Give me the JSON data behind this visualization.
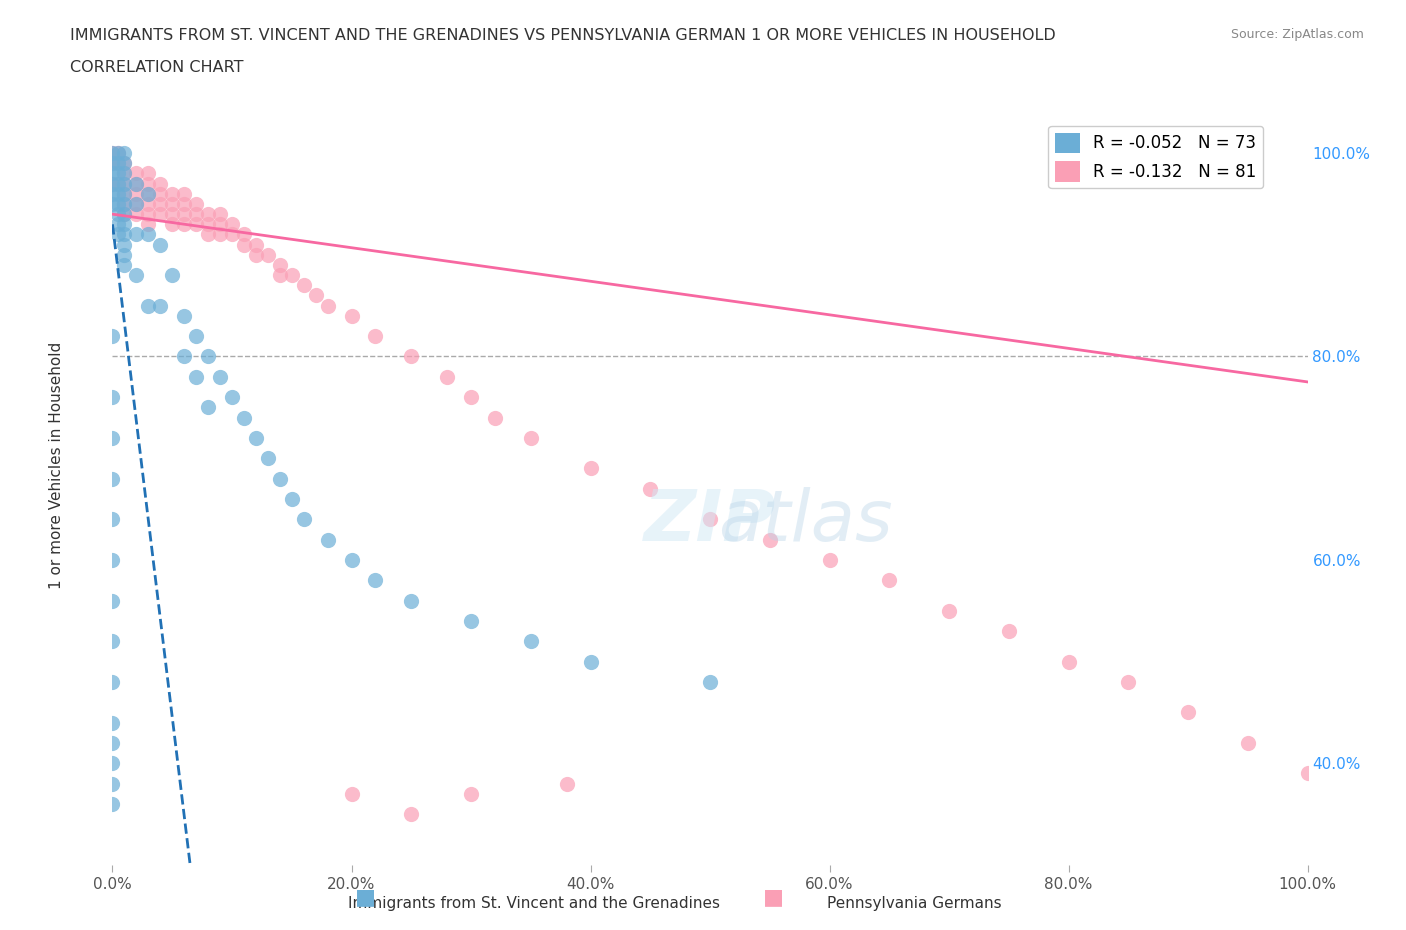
{
  "title_line1": "IMMIGRANTS FROM ST. VINCENT AND THE GRENADINES VS PENNSYLVANIA GERMAN 1 OR MORE VEHICLES IN HOUSEHOLD",
  "title_line2": "CORRELATION CHART",
  "source_text": "Source: ZipAtlas.com",
  "xlabel": "",
  "ylabel": "1 or more Vehicles in Household",
  "xticklabels": [
    "0.0%",
    "20.0%",
    "40.0%",
    "60.0%",
    "80.0%",
    "100.0%"
  ],
  "yticklabels": [
    "40.0%",
    "60.0%",
    "80.0%",
    "100.0%"
  ],
  "xlim": [
    0,
    1
  ],
  "ylim": [
    0.3,
    1.05
  ],
  "legend_label_blue": "Immigrants from St. Vincent and the Grenadines",
  "legend_label_pink": "Pennsylvania Germans",
  "R_blue": -0.052,
  "N_blue": 73,
  "R_pink": -0.132,
  "N_pink": 81,
  "blue_color": "#6baed6",
  "pink_color": "#fa9fb5",
  "blue_line_color": "#2171b5",
  "pink_line_color": "#f768a1",
  "watermark_text": "ZIPatlas",
  "blue_scatter_x": [
    0.0,
    0.0,
    0.0,
    0.0,
    0.0,
    0.0,
    0.005,
    0.005,
    0.005,
    0.005,
    0.005,
    0.005,
    0.005,
    0.005,
    0.005,
    0.01,
    0.01,
    0.01,
    0.01,
    0.01,
    0.01,
    0.01,
    0.01,
    0.01,
    0.01,
    0.01,
    0.01,
    0.02,
    0.02,
    0.02,
    0.02,
    0.03,
    0.03,
    0.03,
    0.04,
    0.04,
    0.05,
    0.06,
    0.06,
    0.07,
    0.07,
    0.08,
    0.08,
    0.09,
    0.1,
    0.11,
    0.12,
    0.13,
    0.14,
    0.15,
    0.16,
    0.18,
    0.2,
    0.22,
    0.25,
    0.3,
    0.35,
    0.4,
    0.5,
    0.0,
    0.0,
    0.0,
    0.0,
    0.0,
    0.0,
    0.0,
    0.0,
    0.0,
    0.0,
    0.0,
    0.0,
    0.0,
    0.0
  ],
  "blue_scatter_y": [
    1.0,
    0.99,
    0.98,
    0.97,
    0.96,
    0.95,
    1.0,
    0.99,
    0.98,
    0.97,
    0.96,
    0.95,
    0.94,
    0.93,
    0.92,
    1.0,
    0.99,
    0.98,
    0.97,
    0.96,
    0.95,
    0.94,
    0.93,
    0.92,
    0.91,
    0.9,
    0.89,
    0.97,
    0.95,
    0.92,
    0.88,
    0.96,
    0.92,
    0.85,
    0.91,
    0.85,
    0.88,
    0.84,
    0.8,
    0.82,
    0.78,
    0.8,
    0.75,
    0.78,
    0.76,
    0.74,
    0.72,
    0.7,
    0.68,
    0.66,
    0.64,
    0.62,
    0.6,
    0.58,
    0.56,
    0.54,
    0.52,
    0.5,
    0.48,
    0.82,
    0.76,
    0.72,
    0.68,
    0.64,
    0.6,
    0.56,
    0.52,
    0.48,
    0.44,
    0.42,
    0.4,
    0.38,
    0.36
  ],
  "pink_scatter_x": [
    0.0,
    0.0,
    0.0,
    0.005,
    0.005,
    0.005,
    0.01,
    0.01,
    0.01,
    0.01,
    0.01,
    0.01,
    0.02,
    0.02,
    0.02,
    0.02,
    0.02,
    0.03,
    0.03,
    0.03,
    0.03,
    0.03,
    0.03,
    0.04,
    0.04,
    0.04,
    0.04,
    0.05,
    0.05,
    0.05,
    0.05,
    0.06,
    0.06,
    0.06,
    0.06,
    0.07,
    0.07,
    0.07,
    0.08,
    0.08,
    0.08,
    0.09,
    0.09,
    0.09,
    0.1,
    0.1,
    0.11,
    0.11,
    0.12,
    0.12,
    0.13,
    0.14,
    0.14,
    0.15,
    0.16,
    0.17,
    0.18,
    0.2,
    0.22,
    0.25,
    0.28,
    0.3,
    0.32,
    0.35,
    0.4,
    0.45,
    0.5,
    0.55,
    0.6,
    0.65,
    0.7,
    0.75,
    0.8,
    0.85,
    0.9,
    0.95,
    1.0,
    0.2,
    0.25,
    0.3,
    0.38
  ],
  "pink_scatter_y": [
    1.0,
    0.99,
    0.97,
    1.0,
    0.99,
    0.97,
    0.99,
    0.98,
    0.97,
    0.96,
    0.95,
    0.94,
    0.98,
    0.97,
    0.96,
    0.95,
    0.94,
    0.98,
    0.97,
    0.96,
    0.95,
    0.94,
    0.93,
    0.97,
    0.96,
    0.95,
    0.94,
    0.96,
    0.95,
    0.94,
    0.93,
    0.96,
    0.95,
    0.94,
    0.93,
    0.95,
    0.94,
    0.93,
    0.94,
    0.93,
    0.92,
    0.94,
    0.93,
    0.92,
    0.93,
    0.92,
    0.92,
    0.91,
    0.91,
    0.9,
    0.9,
    0.89,
    0.88,
    0.88,
    0.87,
    0.86,
    0.85,
    0.84,
    0.82,
    0.8,
    0.78,
    0.76,
    0.74,
    0.72,
    0.69,
    0.67,
    0.64,
    0.62,
    0.6,
    0.58,
    0.55,
    0.53,
    0.5,
    0.48,
    0.45,
    0.42,
    0.39,
    0.37,
    0.35,
    0.37,
    0.38
  ]
}
